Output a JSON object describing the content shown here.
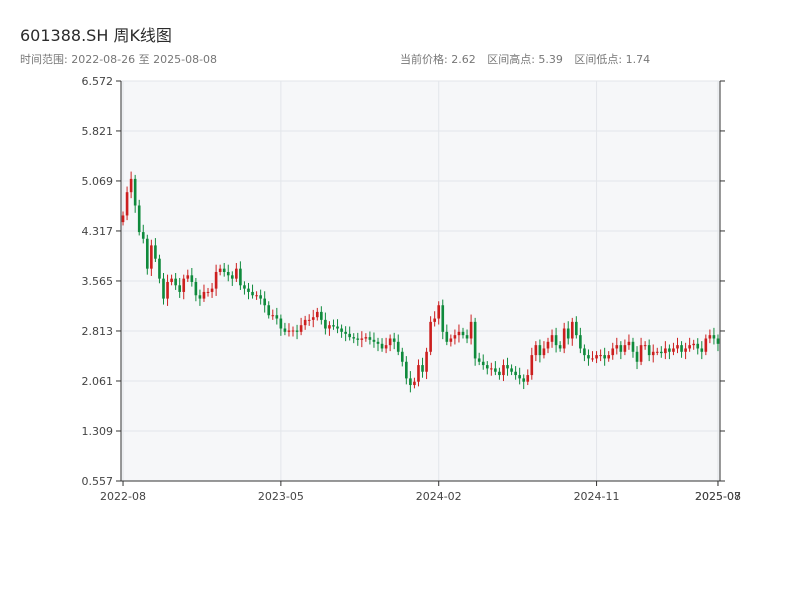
{
  "header": {
    "title": "601388.SH 周K线图",
    "range_label": "时间范围: 2022-08-26 至 2025-08-08",
    "current_price_label": "当前价格: 2.62",
    "high_label": "区间高点: 5.39",
    "low_label": "区间低点: 1.74"
  },
  "colors": {
    "up": "#cc1f1f",
    "down": "#0f8a3c",
    "plot_bg": "#f6f7f9",
    "grid": "#e3e6ea",
    "axis": "#333333"
  },
  "chart_data": {
    "type": "candlestick",
    "symbol": "601388.SH",
    "interval": "weekly",
    "xlabel": "",
    "ylabel": "",
    "ylim": [
      0.557,
      6.572
    ],
    "y_ticks": [
      "6.572",
      "5.821",
      "5.069",
      "4.317",
      "3.565",
      "2.813",
      "2.061",
      "1.309",
      "0.557"
    ],
    "x_ticks": [
      "2022-08",
      "2023-05",
      "2024-02",
      "2024-11",
      "2025-07",
      "2025-08"
    ],
    "x_tick_weeks": [
      0,
      39,
      78,
      117,
      152,
      156
    ],
    "grid": true,
    "closes": [
      4.55,
      4.9,
      5.1,
      4.7,
      4.3,
      4.2,
      3.75,
      4.1,
      3.9,
      3.6,
      3.3,
      3.55,
      3.6,
      3.5,
      3.4,
      3.6,
      3.65,
      3.55,
      3.35,
      3.3,
      3.4,
      3.4,
      3.45,
      3.7,
      3.75,
      3.7,
      3.65,
      3.6,
      3.75,
      3.5,
      3.45,
      3.4,
      3.35,
      3.35,
      3.3,
      3.2,
      3.05,
      3.05,
      3.0,
      2.85,
      2.8,
      2.82,
      2.82,
      2.8,
      2.9,
      2.98,
      2.98,
      3.02,
      3.1,
      2.98,
      2.85,
      2.9,
      2.88,
      2.85,
      2.8,
      2.77,
      2.72,
      2.7,
      2.68,
      2.7,
      2.72,
      2.68,
      2.65,
      2.62,
      2.55,
      2.6,
      2.7,
      2.65,
      2.5,
      2.35,
      2.1,
      2.0,
      2.05,
      2.3,
      2.2,
      2.5,
      2.95,
      3.0,
      3.2,
      2.8,
      2.65,
      2.7,
      2.75,
      2.8,
      2.75,
      2.7,
      2.95,
      2.4,
      2.35,
      2.3,
      2.25,
      2.25,
      2.2,
      2.15,
      2.3,
      2.25,
      2.2,
      2.15,
      2.1,
      2.05,
      2.15,
      2.45,
      2.6,
      2.45,
      2.55,
      2.65,
      2.75,
      2.6,
      2.55,
      2.85,
      2.7,
      2.95,
      2.75,
      2.55,
      2.45,
      2.4,
      2.4,
      2.45,
      2.45,
      2.4,
      2.45,
      2.55,
      2.6,
      2.5,
      2.6,
      2.65,
      2.5,
      2.35,
      2.6,
      2.6,
      2.45,
      2.5,
      2.5,
      2.48,
      2.55,
      2.5,
      2.55,
      2.6,
      2.5,
      2.55,
      2.6,
      2.62,
      2.55,
      2.5,
      2.7,
      2.75,
      2.7,
      2.62
    ],
    "current_price": 2.62,
    "range_high": 5.39,
    "range_low": 1.74
  }
}
